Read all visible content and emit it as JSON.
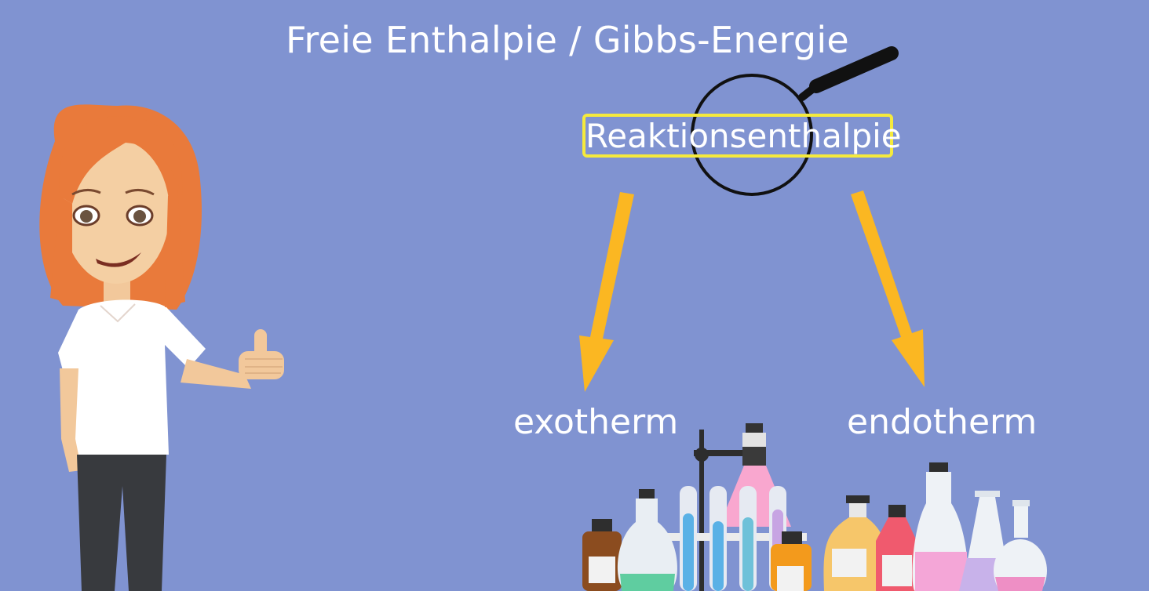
{
  "slide": {
    "title": "Freie Enthalpie / Gibbs-Energie",
    "keyword": "Reaktionsenthalpie",
    "left_branch": "exotherm",
    "right_branch": "endotherm"
  },
  "colors": {
    "background": "#8093d1",
    "arrow": "#fbb722",
    "highlight_border": "#f5ea3c",
    "hair": "#e97a3b",
    "text": "#ffffff"
  },
  "illustrations": {
    "presenter": "cartoon-woman-thumbs-up",
    "tool": "magnifying-glass-icon",
    "lab_equipment": "laboratory-glassware"
  }
}
